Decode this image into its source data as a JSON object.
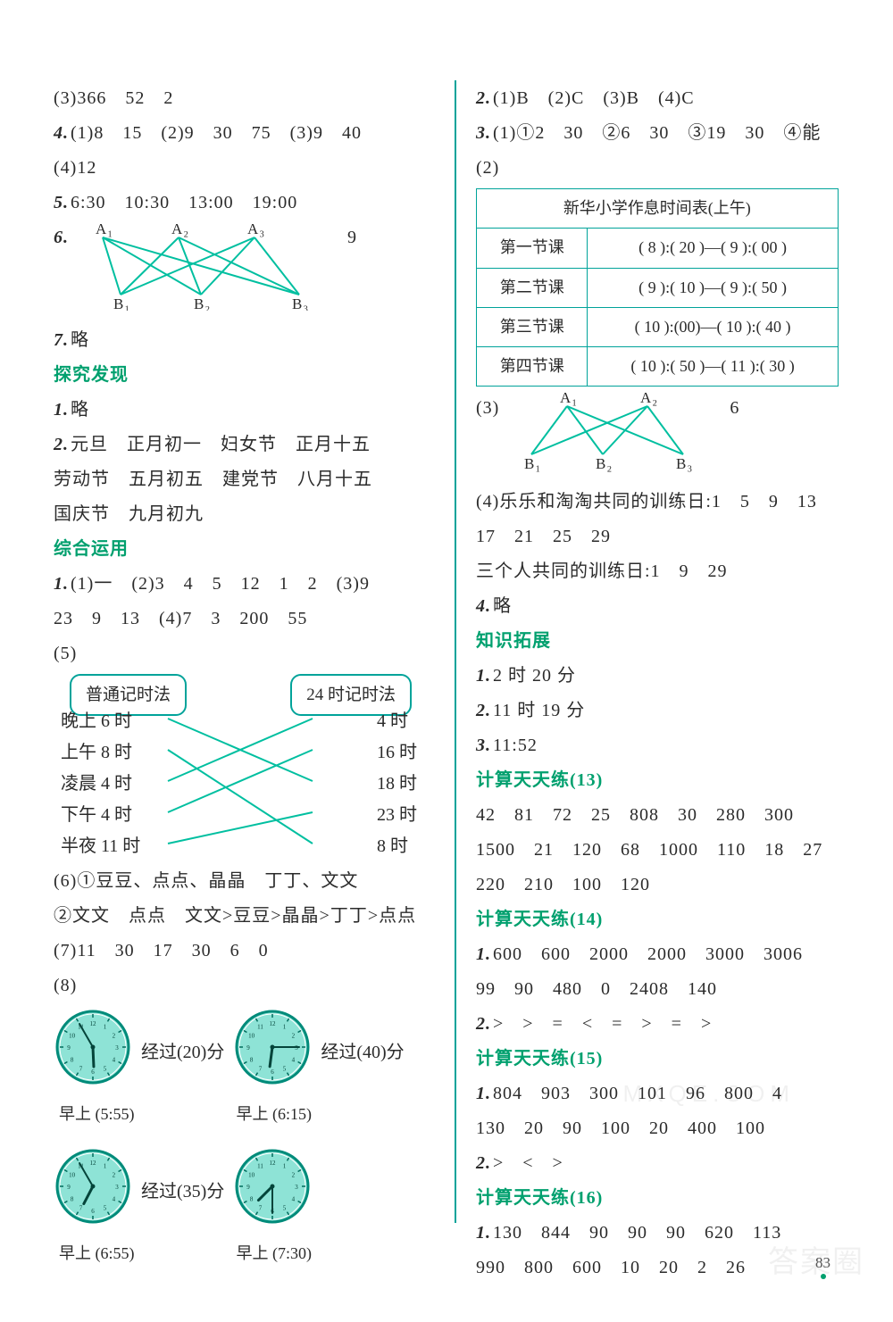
{
  "colors": {
    "teal": "#00a39a",
    "green": "#00a06e",
    "text": "#2b2b2b",
    "clock_fill": "#8ee3d6",
    "clock_stroke": "#008b7a",
    "line_stroke": "#00bfa0"
  },
  "left": {
    "l3": "(3)366　52　2",
    "l4": "(1)8　15　(2)9　30　75　(3)9　40",
    "l4b": "(4)12",
    "l5": "6:30　10:30　13:00　19:00",
    "l6_num": "9",
    "graph6": {
      "A": [
        "A₁",
        "A₂",
        "A₃"
      ],
      "B": [
        "B₁",
        "B₂",
        "B₃"
      ],
      "Apos": [
        30,
        115,
        200
      ],
      "Bpos": [
        50,
        140,
        250
      ],
      "h": 70
    },
    "l7": "略",
    "sec1": "探究发现",
    "tj1": "略",
    "tj2a": "元旦　正月初一　妇女节　正月十五",
    "tj2b": "劳动节　五月初五　建党节　八月十五",
    "tj2c": "国庆节　九月初九",
    "sec2": "综合运用",
    "zh1a": "(1)一　(2)3　4　5　12　1　2　(3)9",
    "zh1b": "23　9　13　(4)7　3　200　55",
    "zh1c": "(5)",
    "match": {
      "left_title": "普通记时法",
      "right_title": "24 时记时法",
      "left": [
        "晚上 6 时",
        "上午 8 时",
        "凌晨 4 时",
        "下午 4 时",
        "半夜 11 时"
      ],
      "right": [
        "4 时",
        "16 时",
        "18 时",
        "23 时",
        "8 时"
      ],
      "links": [
        [
          0,
          2
        ],
        [
          1,
          4
        ],
        [
          2,
          0
        ],
        [
          3,
          1
        ],
        [
          4,
          3
        ]
      ]
    },
    "zh6a": "(6)①豆豆、点点、晶晶　丁丁、文文",
    "zh6b": "②文文　点点　文文>豆豆>晶晶>丁丁>点点",
    "zh7": "(7)11　30　17　30　6　0",
    "zh8": "(8)",
    "clocks": {
      "row1": {
        "c1": {
          "h": 5,
          "m": 55,
          "label": "早上 (5:55)"
        },
        "t1": "经过(20)分",
        "c2": {
          "h": 6,
          "m": 15,
          "label": "早上 (6:15)"
        },
        "t2": "经过(40)分"
      },
      "row2": {
        "c1": {
          "h": 6,
          "m": 55,
          "label": "早上 (6:55)"
        },
        "t1": "经过(35)分",
        "c2": {
          "h": 7,
          "m": 30,
          "label": "早上 (7:30)"
        }
      }
    }
  },
  "right": {
    "l2": "(1)B　(2)C　(3)B　(4)C",
    "l3": "(1)①2　30　②6　30　③19　30　④能",
    "l3b": "(2)",
    "table": {
      "title": "新华小学作息时间表(上午)",
      "rows": [
        [
          "第一节课",
          "( 8 ):( 20 )—( 9 ):( 00 )"
        ],
        [
          "第二节课",
          "( 9 ):( 10 )—( 9 ):( 50 )"
        ],
        [
          "第三节课",
          "( 10 ):(00)—( 10 ):( 40 )"
        ],
        [
          "第四节课",
          "( 10 ):( 50 )—( 11 ):( 30 )"
        ]
      ]
    },
    "l3c": "(3)",
    "graph3": {
      "A": [
        "A₁",
        "A₂"
      ],
      "B": [
        "B₁",
        "B₂",
        "B₃"
      ],
      "Apos": [
        70,
        160
      ],
      "Bpos": [
        30,
        110,
        200
      ],
      "h": 60,
      "num": "6"
    },
    "l3d": "(4)乐乐和淘淘共同的训练日:1　5　9　13",
    "l3e": "17　21　25　29",
    "l3f": "三个人共同的训练日:1　9　29",
    "l4": "略",
    "sec3": "知识拓展",
    "k1": "2 时 20 分",
    "k2": "11 时 19 分",
    "k3": "11:52",
    "c13h": "计算天天练(13)",
    "c13a": "42　81　72　25　808　30　280　300",
    "c13b": "1500　21　120　68　1000　110　18　27",
    "c13c": "220　210　100　120",
    "c14h": "计算天天练(14)",
    "c14a": "600　600　2000　2000　3000　3006",
    "c14b": "99　90　480　0　2408　140",
    "c14c": ">　>　=　<　=　>　=　>",
    "c15h": "计算天天练(15)",
    "c15a": "804　903　300　101　96　800　4",
    "c15b": "130　20　90　100　20　400　100",
    "c15c": ">　<　>",
    "c16h": "计算天天练(16)",
    "c16a": "130　844　90　90　90　620　113",
    "c16b": "990　800　600　10　20　2　26"
  },
  "page_number": "83",
  "wm1": "MXQE.COM",
  "wm2": "答案圈"
}
